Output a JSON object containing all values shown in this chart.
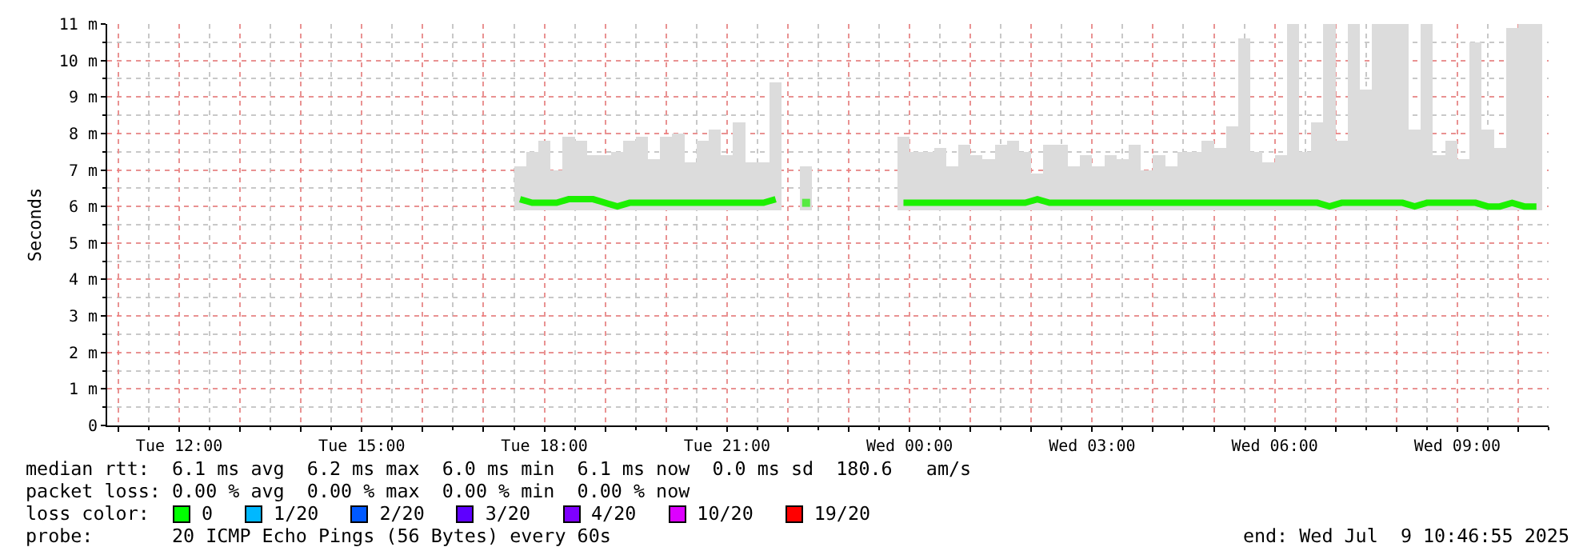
{
  "chart_data": {
    "type": "bar",
    "ylabel": "Seconds",
    "xlim": [
      "2025-07-08T10:49",
      "2025-07-09T10:30"
    ],
    "xticks": [
      {
        "value": "2025-07-08T11:00",
        "label": null
      },
      {
        "value": "2025-07-08T12:00",
        "label": "Tue 12:00"
      },
      {
        "value": "2025-07-08T13:00",
        "label": null
      },
      {
        "value": "2025-07-08T14:00",
        "label": null
      },
      {
        "value": "2025-07-08T15:00",
        "label": "Tue 15:00"
      },
      {
        "value": "2025-07-08T16:00",
        "label": null
      },
      {
        "value": "2025-07-08T17:00",
        "label": null
      },
      {
        "value": "2025-07-08T18:00",
        "label": "Tue 18:00"
      },
      {
        "value": "2025-07-08T19:00",
        "label": null
      },
      {
        "value": "2025-07-08T20:00",
        "label": null
      },
      {
        "value": "2025-07-08T21:00",
        "label": "Tue 21:00"
      },
      {
        "value": "2025-07-08T22:00",
        "label": null
      },
      {
        "value": "2025-07-08T23:00",
        "label": null
      },
      {
        "value": "2025-07-09T00:00",
        "label": "Wed 00:00"
      },
      {
        "value": "2025-07-09T01:00",
        "label": null
      },
      {
        "value": "2025-07-09T02:00",
        "label": null
      },
      {
        "value": "2025-07-09T03:00",
        "label": "Wed 03:00"
      },
      {
        "value": "2025-07-09T04:00",
        "label": null
      },
      {
        "value": "2025-07-09T05:00",
        "label": null
      },
      {
        "value": "2025-07-09T06:00",
        "label": "Wed 06:00"
      },
      {
        "value": "2025-07-09T07:00",
        "label": null
      },
      {
        "value": "2025-07-09T08:00",
        "label": null
      },
      {
        "value": "2025-07-09T09:00",
        "label": "Wed 09:00"
      },
      {
        "value": "2025-07-09T10:00",
        "label": null
      }
    ],
    "ylim": [
      0,
      11
    ],
    "yticks": [
      0,
      {
        "value": 1,
        "label": "1 m"
      },
      {
        "value": 2,
        "label": "2 m"
      },
      {
        "value": 3,
        "label": "3 m"
      },
      {
        "value": 4,
        "label": "4 m"
      },
      {
        "value": 5,
        "label": "5 m"
      },
      {
        "value": 6,
        "label": "6 m"
      },
      {
        "value": 7,
        "label": "7 m"
      },
      {
        "value": 8,
        "label": "8 m"
      },
      {
        "value": 9,
        "label": "9 m"
      },
      {
        "value": 10,
        "label": "10 m"
      },
      {
        "value": 11,
        "label": "11 m"
      }
    ],
    "grid": true,
    "series": [
      {
        "color": "#dcdcdc",
        "x": [
          "2025-07-08T17:36",
          "2025-07-08T17:48",
          "2025-07-08T18:00",
          "2025-07-08T18:12",
          "2025-07-08T18:24",
          "2025-07-08T18:36",
          "2025-07-08T18:48",
          "2025-07-08T19:00",
          "2025-07-08T19:12",
          "2025-07-08T19:24",
          "2025-07-08T19:36",
          "2025-07-08T19:48",
          "2025-07-08T20:00",
          "2025-07-08T20:12",
          "2025-07-08T20:24",
          "2025-07-08T20:36",
          "2025-07-08T20:48",
          "2025-07-08T21:00",
          "2025-07-08T21:12",
          "2025-07-08T21:24",
          "2025-07-08T21:36",
          "2025-07-08T21:48",
          "2025-07-08T22:18",
          "2025-07-08T23:54",
          "2025-07-09T00:06",
          "2025-07-09T00:18",
          "2025-07-09T00:30",
          "2025-07-09T00:42",
          "2025-07-09T00:54",
          "2025-07-09T01:06",
          "2025-07-09T01:18",
          "2025-07-09T01:30",
          "2025-07-09T01:42",
          "2025-07-09T01:54",
          "2025-07-09T02:06",
          "2025-07-09T02:18",
          "2025-07-09T02:30",
          "2025-07-09T02:42",
          "2025-07-09T02:54",
          "2025-07-09T03:06",
          "2025-07-09T03:18",
          "2025-07-09T03:30",
          "2025-07-09T03:42",
          "2025-07-09T03:54",
          "2025-07-09T04:06",
          "2025-07-09T04:18",
          "2025-07-09T04:30",
          "2025-07-09T04:42",
          "2025-07-09T04:54",
          "2025-07-09T05:06",
          "2025-07-09T05:18",
          "2025-07-09T05:30",
          "2025-07-09T05:42",
          "2025-07-09T05:54",
          "2025-07-09T06:06",
          "2025-07-09T06:18",
          "2025-07-09T06:30",
          "2025-07-09T06:42",
          "2025-07-09T06:54",
          "2025-07-09T07:06",
          "2025-07-09T07:18",
          "2025-07-09T07:30",
          "2025-07-09T07:42",
          "2025-07-09T07:54",
          "2025-07-09T08:06",
          "2025-07-09T08:18",
          "2025-07-09T08:30",
          "2025-07-09T08:42",
          "2025-07-09T08:54",
          "2025-07-09T09:06",
          "2025-07-09T09:18",
          "2025-07-09T09:30",
          "2025-07-09T09:42",
          "2025-07-09T09:54",
          "2025-07-09T10:06",
          "2025-07-09T10:18"
        ],
        "base": [
          5.9,
          5.9,
          5.9,
          5.9,
          5.9,
          5.9,
          5.9,
          5.9,
          5.9,
          5.9,
          5.9,
          5.9,
          5.9,
          5.9,
          5.9,
          5.9,
          5.9,
          5.9,
          5.9,
          5.9,
          5.9,
          5.9,
          5.9,
          5.9,
          5.9,
          5.9,
          5.9,
          5.9,
          5.9,
          5.9,
          5.9,
          5.9,
          5.9,
          5.9,
          5.9,
          5.9,
          5.9,
          5.9,
          5.9,
          5.9,
          5.9,
          5.9,
          5.9,
          5.9,
          5.9,
          5.9,
          5.9,
          5.9,
          5.9,
          5.9,
          5.9,
          5.9,
          5.9,
          5.9,
          5.9,
          5.9,
          5.9,
          5.9,
          5.9,
          5.9,
          5.9,
          5.9,
          5.9,
          5.9,
          5.9,
          5.9,
          5.9,
          5.9,
          5.9,
          5.9,
          5.9,
          5.9,
          5.9,
          5.9,
          5.9,
          5.9
        ],
        "values": [
          1.2,
          1.6,
          1.9,
          1.1,
          2.0,
          1.9,
          1.5,
          1.5,
          1.6,
          1.9,
          2.0,
          1.4,
          2.0,
          2.1,
          1.3,
          1.9,
          2.2,
          1.5,
          2.4,
          1.3,
          1.3,
          3.5,
          1.2,
          2.0,
          1.6,
          1.6,
          1.7,
          1.2,
          1.8,
          1.5,
          1.4,
          1.8,
          1.9,
          1.6,
          1.0,
          1.8,
          1.8,
          1.2,
          1.5,
          1.2,
          1.5,
          1.4,
          1.8,
          1.1,
          1.5,
          1.2,
          1.6,
          1.6,
          1.9,
          1.7,
          2.3,
          4.7,
          1.6,
          1.3,
          1.5,
          5.1,
          1.6,
          2.4,
          5.1,
          1.9,
          5.1,
          3.3,
          5.1,
          5.1,
          5.1,
          2.2,
          5.1,
          1.5,
          1.9,
          1.4,
          4.6,
          2.2,
          1.7,
          5.0,
          5.1,
          5.1
        ]
      },
      {
        "type": "line",
        "color": "#1cf000",
        "x": [
          "2025-07-08T17:36",
          "2025-07-08T17:48",
          "2025-07-08T18:00",
          "2025-07-08T18:12",
          "2025-07-08T18:24",
          "2025-07-08T18:36",
          "2025-07-08T18:48",
          "2025-07-08T19:00",
          "2025-07-08T19:12",
          "2025-07-08T19:24",
          "2025-07-08T19:36",
          "2025-07-08T19:48",
          "2025-07-08T20:00",
          "2025-07-08T20:12",
          "2025-07-08T20:24",
          "2025-07-08T20:36",
          "2025-07-08T20:48",
          "2025-07-08T21:00",
          "2025-07-08T21:12",
          "2025-07-08T21:24",
          "2025-07-08T21:36",
          "2025-07-08T21:48",
          "2025-07-08T22:06",
          "2025-07-08T22:18",
          "2025-07-08T23:06",
          "2025-07-08T23:54",
          "2025-07-09T00:06",
          "2025-07-09T00:18",
          "2025-07-09T00:30",
          "2025-07-09T00:42",
          "2025-07-09T00:54",
          "2025-07-09T01:06",
          "2025-07-09T01:18",
          "2025-07-09T01:30",
          "2025-07-09T01:42",
          "2025-07-09T01:54",
          "2025-07-09T02:06",
          "2025-07-09T02:18",
          "2025-07-09T02:30",
          "2025-07-09T02:42",
          "2025-07-09T02:54",
          "2025-07-09T03:06",
          "2025-07-09T03:18",
          "2025-07-09T03:30",
          "2025-07-09T03:42",
          "2025-07-09T03:54",
          "2025-07-09T04:06",
          "2025-07-09T04:18",
          "2025-07-09T04:30",
          "2025-07-09T04:42",
          "2025-07-09T04:54",
          "2025-07-09T05:06",
          "2025-07-09T05:18",
          "2025-07-09T05:30",
          "2025-07-09T05:42",
          "2025-07-09T05:54",
          "2025-07-09T06:06",
          "2025-07-09T06:18",
          "2025-07-09T06:30",
          "2025-07-09T06:42",
          "2025-07-09T06:54",
          "2025-07-09T07:06",
          "2025-07-09T07:18",
          "2025-07-09T07:30",
          "2025-07-09T07:42",
          "2025-07-09T07:54",
          "2025-07-09T08:06",
          "2025-07-09T08:18",
          "2025-07-09T08:30",
          "2025-07-09T08:42",
          "2025-07-09T08:54",
          "2025-07-09T09:06",
          "2025-07-09T09:18",
          "2025-07-09T09:30",
          "2025-07-09T09:42",
          "2025-07-09T09:54",
          "2025-07-09T10:06",
          "2025-07-09T10:18"
        ],
        "values": [
          6.2,
          6.1,
          6.1,
          6.1,
          6.2,
          6.2,
          6.2,
          6.1,
          6.0,
          6.1,
          6.1,
          6.1,
          6.1,
          6.1,
          6.1,
          6.1,
          6.1,
          6.1,
          6.1,
          6.1,
          6.1,
          6.2,
          null,
          6.1,
          null,
          6.1,
          6.1,
          6.1,
          6.1,
          6.1,
          6.1,
          6.1,
          6.1,
          6.1,
          6.1,
          6.1,
          6.2,
          6.1,
          6.1,
          6.1,
          6.1,
          6.1,
          6.1,
          6.1,
          6.1,
          6.1,
          6.1,
          6.1,
          6.1,
          6.1,
          6.1,
          6.1,
          6.1,
          6.1,
          6.1,
          6.1,
          6.1,
          6.1,
          6.1,
          6.1,
          6.0,
          6.1,
          6.1,
          6.1,
          6.1,
          6.1,
          6.1,
          6.0,
          6.1,
          6.1,
          6.1,
          6.1,
          6.1,
          6.0,
          6.0,
          6.1,
          6.0,
          6.0
        ]
      }
    ],
    "annotations": [
      "median rtt:  6.1 ms avg  6.2 ms max  6.0 ms min  6.1 ms now  0.0 ms sd  180.6   am/s",
      "packet loss: 0.00 % avg  0.00 % max  0.00 % min  0.00 % now",
      "loss color:",
      "0",
      "1/20",
      "2/20",
      "3/20",
      "4/20",
      "10/20",
      "19/20",
      "probe:       20 ICMP Echo Pings (56 Bytes) every 60s",
      "end: Wed Jul  9 10:46:55 2025"
    ]
  }
}
